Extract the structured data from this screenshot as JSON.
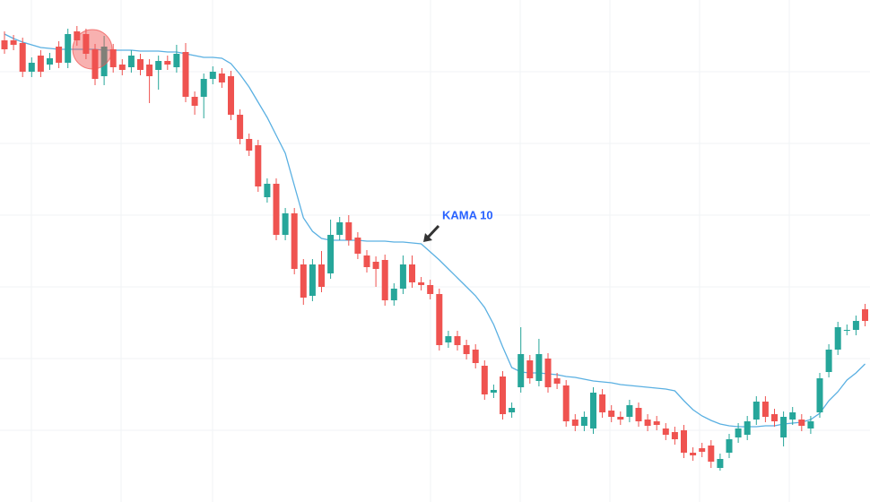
{
  "chart_data": {
    "type": "candlestick",
    "annotation": "KAMA 10",
    "ylim": [
      0,
      560
    ],
    "up_color": "#26a69a",
    "down_color": "#ef5350",
    "open": [
      515,
      515,
      512,
      480,
      498,
      488,
      508,
      490,
      525,
      522,
      505,
      475,
      505,
      488,
      485,
      494,
      488,
      482,
      492,
      485,
      502,
      452,
      452,
      472,
      478,
      475,
      432,
      405,
      398,
      340,
      355,
      298,
      322,
      265,
      230,
      265,
      255,
      298,
      312,
      295,
      275,
      268,
      270,
      225,
      238,
      265,
      245,
      242,
      232,
      178,
      185,
      175,
      170,
      152,
      122,
      140,
      100,
      128,
      158,
      135,
      160,
      138,
      130,
      92,
      85,
      82,
      120,
      102,
      95,
      95,
      105,
      92,
      90,
      82,
      78,
      80,
      55,
      60,
      63,
      38,
      55,
      72,
      75,
      92,
      112,
      98,
      72,
      92,
      92,
      82,
      100,
      145,
      170,
      192,
      192,
      215
    ],
    "high": [
      525,
      521,
      518,
      496,
      504,
      501,
      514,
      528,
      531,
      528,
      511,
      520,
      511,
      494,
      504,
      500,
      494,
      498,
      498,
      510,
      512,
      458,
      478,
      486,
      484,
      481,
      438,
      411,
      404,
      361,
      361,
      328,
      328,
      271,
      271,
      280,
      315,
      318,
      320,
      301,
      281,
      274,
      276,
      244,
      275,
      275,
      251,
      248,
      238,
      191,
      191,
      181,
      176,
      158,
      131,
      146,
      111,
      195,
      164,
      182,
      166,
      144,
      136,
      98,
      101,
      128,
      126,
      108,
      101,
      114,
      111,
      98,
      96,
      88,
      84,
      86,
      61,
      66,
      69,
      54,
      76,
      88,
      96,
      118,
      118,
      104,
      101,
      106,
      98,
      96,
      144,
      176,
      201,
      198,
      208,
      221
    ],
    "low": [
      500,
      504,
      474,
      474,
      474,
      482,
      484,
      484,
      509,
      494,
      465,
      465,
      479,
      476,
      479,
      476,
      445,
      460,
      482,
      479,
      446,
      432,
      428,
      466,
      462,
      426,
      399,
      386,
      346,
      334,
      292,
      292,
      254,
      220,
      224,
      234,
      249,
      292,
      286,
      271,
      256,
      240,
      219,
      219,
      232,
      239,
      236,
      226,
      169,
      172,
      169,
      159,
      149,
      114,
      116,
      92,
      94,
      122,
      132,
      129,
      122,
      126,
      84,
      79,
      79,
      76,
      94,
      89,
      86,
      89,
      84,
      79,
      80,
      69,
      64,
      49,
      46,
      50,
      38,
      35,
      49,
      66,
      69,
      86,
      89,
      84,
      62,
      86,
      79,
      76,
      94,
      139,
      164,
      186,
      186,
      196
    ],
    "close": [
      505,
      510,
      480,
      490,
      480,
      495,
      490,
      522,
      515,
      500,
      472,
      508,
      485,
      482,
      498,
      482,
      475,
      492,
      488,
      500,
      452,
      442,
      472,
      480,
      468,
      432,
      405,
      392,
      352,
      355,
      298,
      322,
      260,
      228,
      265,
      240,
      298,
      312,
      292,
      277,
      262,
      260,
      225,
      238,
      265,
      245,
      242,
      232,
      175,
      185,
      175,
      165,
      155,
      120,
      125,
      98,
      105,
      165,
      138,
      165,
      128,
      132,
      90,
      85,
      95,
      122,
      100,
      95,
      92,
      108,
      90,
      85,
      86,
      75,
      70,
      55,
      52,
      56,
      45,
      48,
      70,
      82,
      90,
      112,
      95,
      90,
      95,
      100,
      85,
      90,
      138,
      170,
      195,
      192,
      202,
      202
    ],
    "overlay": {
      "color": "#5ab0e2",
      "values": [
        522,
        517,
        513,
        510,
        507,
        506,
        505,
        505,
        505,
        505,
        505,
        504,
        504,
        504,
        504,
        503,
        503,
        503,
        502,
        502,
        500,
        498,
        496,
        496,
        495,
        489,
        477,
        463,
        446,
        429,
        409,
        389,
        353,
        317,
        302,
        294,
        292,
        292,
        292,
        292,
        291,
        291,
        291,
        290,
        290,
        289,
        288,
        279,
        270,
        260,
        250,
        240,
        230,
        217,
        198,
        173,
        150,
        145,
        144,
        144,
        143,
        142,
        140,
        139,
        137,
        135,
        134,
        133,
        131,
        130,
        129,
        128,
        127,
        126,
        124,
        113,
        103,
        96,
        91,
        87,
        85,
        84,
        84,
        84,
        85,
        85,
        87,
        88,
        89,
        92,
        99,
        113,
        123,
        136,
        144,
        154
      ]
    }
  }
}
